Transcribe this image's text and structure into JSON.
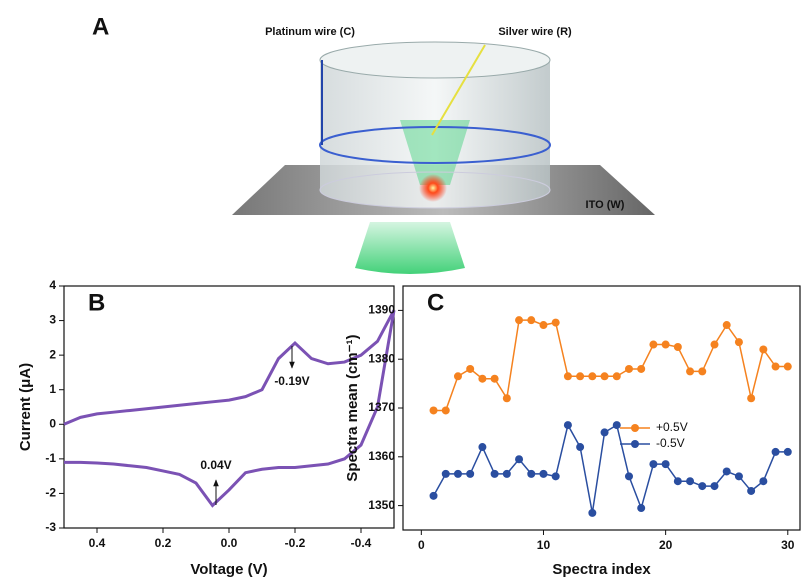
{
  "panel_a": {
    "label": "A",
    "platinum_label": "Platinum wire (C)",
    "silver_label": "Silver wire (R)",
    "ito_label": "ITO (W)"
  },
  "chart_data": [
    {
      "type": "line",
      "panel": "B",
      "xlabel": "Voltage (V)",
      "ylabel": "Current (μA)",
      "x": [
        0.5,
        0.45,
        0.4,
        0.35,
        0.3,
        0.25,
        0.2,
        0.15,
        0.1,
        0.05,
        0.0,
        -0.05,
        -0.1,
        -0.15,
        -0.2,
        -0.25,
        -0.3,
        -0.35,
        -0.4,
        -0.45,
        -0.5
      ],
      "series": [
        {
          "color": "#7b52b4",
          "values": [
            0.0,
            0.2,
            0.3,
            0.35,
            0.4,
            0.45,
            0.5,
            0.55,
            0.6,
            0.65,
            0.7,
            0.8,
            1.0,
            1.9,
            2.35,
            1.9,
            1.75,
            1.8,
            2.0,
            2.4,
            3.3
          ]
        },
        {
          "color": "#7b52b4",
          "values": [
            -1.1,
            -1.1,
            -1.12,
            -1.15,
            -1.2,
            -1.25,
            -1.35,
            -1.45,
            -1.7,
            -2.35,
            -1.9,
            -1.4,
            -1.3,
            -1.25,
            -1.25,
            -1.2,
            -1.15,
            -1.0,
            -0.6,
            0.5,
            3.3
          ]
        }
      ],
      "annotations": [
        "-0.19V",
        "0.04V"
      ],
      "xlim": [
        0.5,
        -0.5
      ],
      "xticks": [
        0.4,
        0.2,
        {
          "value": 0,
          "label": "0.0"
        },
        -0.2,
        -0.4
      ],
      "ylim": [
        -3,
        4
      ],
      "yticks": [
        -3,
        -2,
        -1,
        0,
        1,
        2,
        3,
        4
      ]
    },
    {
      "type": "line",
      "panel": "C",
      "xlabel": "Spectra index",
      "ylabel": "Spectra mean (cm⁻¹)",
      "x": [
        1,
        2,
        3,
        4,
        5,
        6,
        7,
        8,
        9,
        10,
        11,
        12,
        13,
        14,
        15,
        16,
        17,
        18,
        19,
        20,
        21,
        22,
        23,
        24,
        25,
        26,
        27,
        28,
        29,
        30
      ],
      "series": [
        {
          "name": "+0.5V",
          "color": "#f5821f",
          "values": [
            1369.5,
            1369.5,
            1376.5,
            1378,
            1376,
            1376,
            1372,
            1388,
            1388,
            1387,
            1387.5,
            1376.5,
            1376.5,
            1376.5,
            1376.5,
            1376.5,
            1378,
            1378,
            1383,
            1383,
            1382.5,
            1377.5,
            1377.5,
            1383,
            1387,
            1383.5,
            1372,
            1382,
            1378.5,
            1378.5
          ]
        },
        {
          "name": "-0.5V",
          "color": "#2a4ea0",
          "values": [
            1352,
            1356.5,
            1356.5,
            1356.5,
            1362,
            1356.5,
            1356.5,
            1359.5,
            1356.5,
            1356.5,
            1356,
            1366.5,
            1362,
            1348.5,
            1365,
            1366.5,
            1356,
            1349.5,
            1358.5,
            1358.5,
            1355,
            1355,
            1354,
            1354,
            1357,
            1356,
            1353,
            1355,
            1361,
            1361
          ]
        }
      ],
      "legend": "center right",
      "xlim": [
        -1.5,
        31
      ],
      "xticks": [
        0,
        10,
        20,
        30
      ],
      "ylim": [
        1345,
        1395
      ],
      "yticks": [
        1350,
        1360,
        1370,
        1380,
        1390
      ]
    }
  ]
}
